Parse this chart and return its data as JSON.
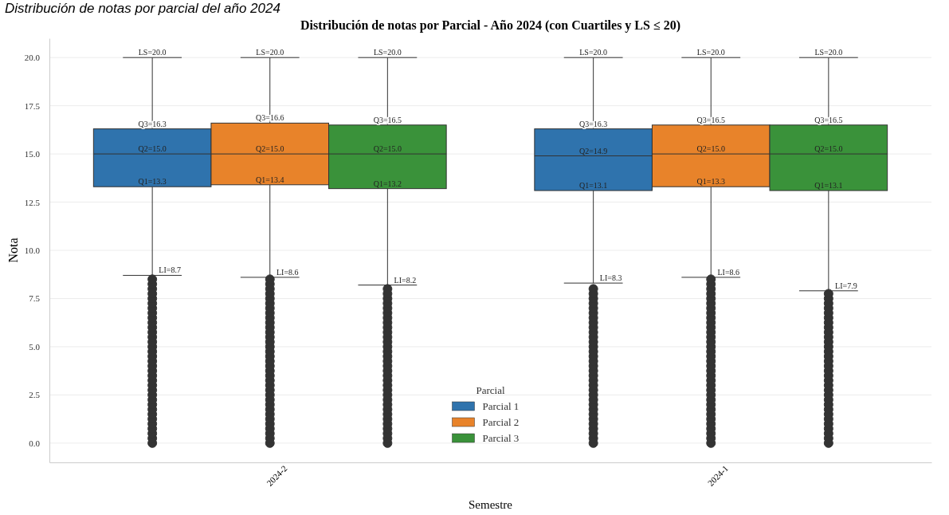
{
  "chart_data": {
    "type": "box",
    "title": "Distribución de notas por Parcial - Año 2024 (con Cuartiles y LS ≤ 20)",
    "subtitle": "Distribución de notas por parcial del año 2024",
    "xlabel": "Semestre",
    "ylabel": "Nota",
    "legend_title": "Parcial",
    "legend": "bottom",
    "grid": "y",
    "categories": [
      "2024-2",
      "2024-1"
    ],
    "ylim": [
      -1,
      21
    ],
    "yticks": [
      {
        "value": 0,
        "label": "0.0"
      },
      {
        "value": 2.5,
        "label": "2.5"
      },
      {
        "value": 5,
        "label": "5.0"
      },
      {
        "value": 7.5,
        "label": "7.5"
      },
      {
        "value": 10,
        "label": "10.0"
      },
      {
        "value": 12.5,
        "label": "12.5"
      },
      {
        "value": 15,
        "label": "15.0"
      },
      {
        "value": 17.5,
        "label": "17.5"
      },
      {
        "value": 20,
        "label": "20.0"
      }
    ],
    "series": [
      {
        "name": "Parcial 1",
        "color": "#2f73ad",
        "boxes": [
          {
            "low": 8.7,
            "q1": 13.3,
            "median": 15.0,
            "q3": 16.3,
            "high": 20.0,
            "outliers": [
              0,
              0.25,
              0.5,
              0.75,
              1,
              1.25,
              1.5,
              1.75,
              2,
              2.25,
              2.5,
              2.75,
              3,
              3.25,
              3.5,
              3.75,
              4,
              4.25,
              4.5,
              4.75,
              5,
              5.25,
              5.5,
              5.75,
              6,
              6.25,
              6.5,
              6.75,
              7,
              7.25,
              7.5,
              7.75,
              8,
              8.25,
              8.5
            ]
          },
          {
            "low": 8.3,
            "q1": 13.1,
            "median": 14.9,
            "q3": 16.3,
            "high": 20.0,
            "outliers": [
              0,
              0.25,
              0.5,
              0.75,
              1,
              1.25,
              1.5,
              1.75,
              2,
              2.25,
              2.5,
              2.75,
              3,
              3.25,
              3.5,
              3.75,
              4,
              4.25,
              4.5,
              4.75,
              5,
              5.25,
              5.5,
              5.75,
              6,
              6.25,
              6.5,
              6.75,
              7,
              7.25,
              7.5,
              7.75,
              8
            ]
          }
        ]
      },
      {
        "name": "Parcial 2",
        "color": "#e8832a",
        "boxes": [
          {
            "low": 8.6,
            "q1": 13.4,
            "median": 15.0,
            "q3": 16.6,
            "high": 20.0,
            "outliers": [
              0,
              0.25,
              0.5,
              0.75,
              1,
              1.25,
              1.5,
              1.75,
              2,
              2.25,
              2.5,
              2.75,
              3,
              3.25,
              3.5,
              3.75,
              4,
              4.25,
              4.5,
              4.75,
              5,
              5.25,
              5.5,
              5.75,
              6,
              6.25,
              6.5,
              6.75,
              7,
              7.25,
              7.5,
              7.75,
              8,
              8.25,
              8.5
            ]
          },
          {
            "low": 8.6,
            "q1": 13.3,
            "median": 15.0,
            "q3": 16.5,
            "high": 20.0,
            "outliers": [
              0,
              0.25,
              0.5,
              0.75,
              1,
              1.25,
              1.5,
              1.75,
              2,
              2.25,
              2.5,
              2.75,
              3,
              3.25,
              3.5,
              3.75,
              4,
              4.25,
              4.5,
              4.75,
              5,
              5.25,
              5.5,
              5.75,
              6,
              6.25,
              6.5,
              6.75,
              7,
              7.25,
              7.5,
              7.75,
              8,
              8.25,
              8.5
            ]
          }
        ]
      },
      {
        "name": "Parcial 3",
        "color": "#3a923a",
        "boxes": [
          {
            "low": 8.2,
            "q1": 13.2,
            "median": 15.0,
            "q3": 16.5,
            "high": 20.0,
            "outliers": [
              0,
              0.25,
              0.5,
              0.75,
              1,
              1.25,
              1.5,
              1.75,
              2,
              2.25,
              2.5,
              2.75,
              3,
              3.25,
              3.5,
              3.75,
              4,
              4.25,
              4.5,
              4.75,
              5,
              5.25,
              5.5,
              5.75,
              6,
              6.25,
              6.5,
              6.75,
              7,
              7.25,
              7.5,
              7.75,
              8
            ]
          },
          {
            "low": 7.9,
            "q1": 13.1,
            "median": 15.0,
            "q3": 16.5,
            "high": 20.0,
            "outliers": [
              0,
              0.25,
              0.5,
              0.75,
              1,
              1.25,
              1.5,
              1.75,
              2,
              2.25,
              2.5,
              2.75,
              3,
              3.25,
              3.5,
              3.75,
              4,
              4.25,
              4.5,
              4.75,
              5,
              5.25,
              5.5,
              5.75,
              6,
              6.25,
              6.5,
              6.75,
              7,
              7.25,
              7.5,
              7.75
            ]
          }
        ]
      }
    ],
    "annotations": [
      "LS=20.0",
      "Q3=16.3",
      "Q2=15.0",
      "Q1=13.3",
      "LI=8.7",
      "LS=20.0",
      "Q3=16.6",
      "Q2=15.0",
      "Q1=13.4",
      "LI=8.6",
      "LS=20.0",
      "Q3=16.5",
      "Q2=15.0",
      "Q1=13.2",
      "LI=8.2",
      "LS=20.0",
      "Q3=16.3",
      "Q2=14.9",
      "Q1=13.1",
      "LI=8.3",
      "LS=20.0",
      "Q3=16.5",
      "Q2=15.0",
      "Q1=13.3",
      "LI=8.6",
      "LS=20.0",
      "Q3=16.5",
      "Q2=15.0",
      "Q1=13.1",
      "LI=7.9"
    ]
  }
}
